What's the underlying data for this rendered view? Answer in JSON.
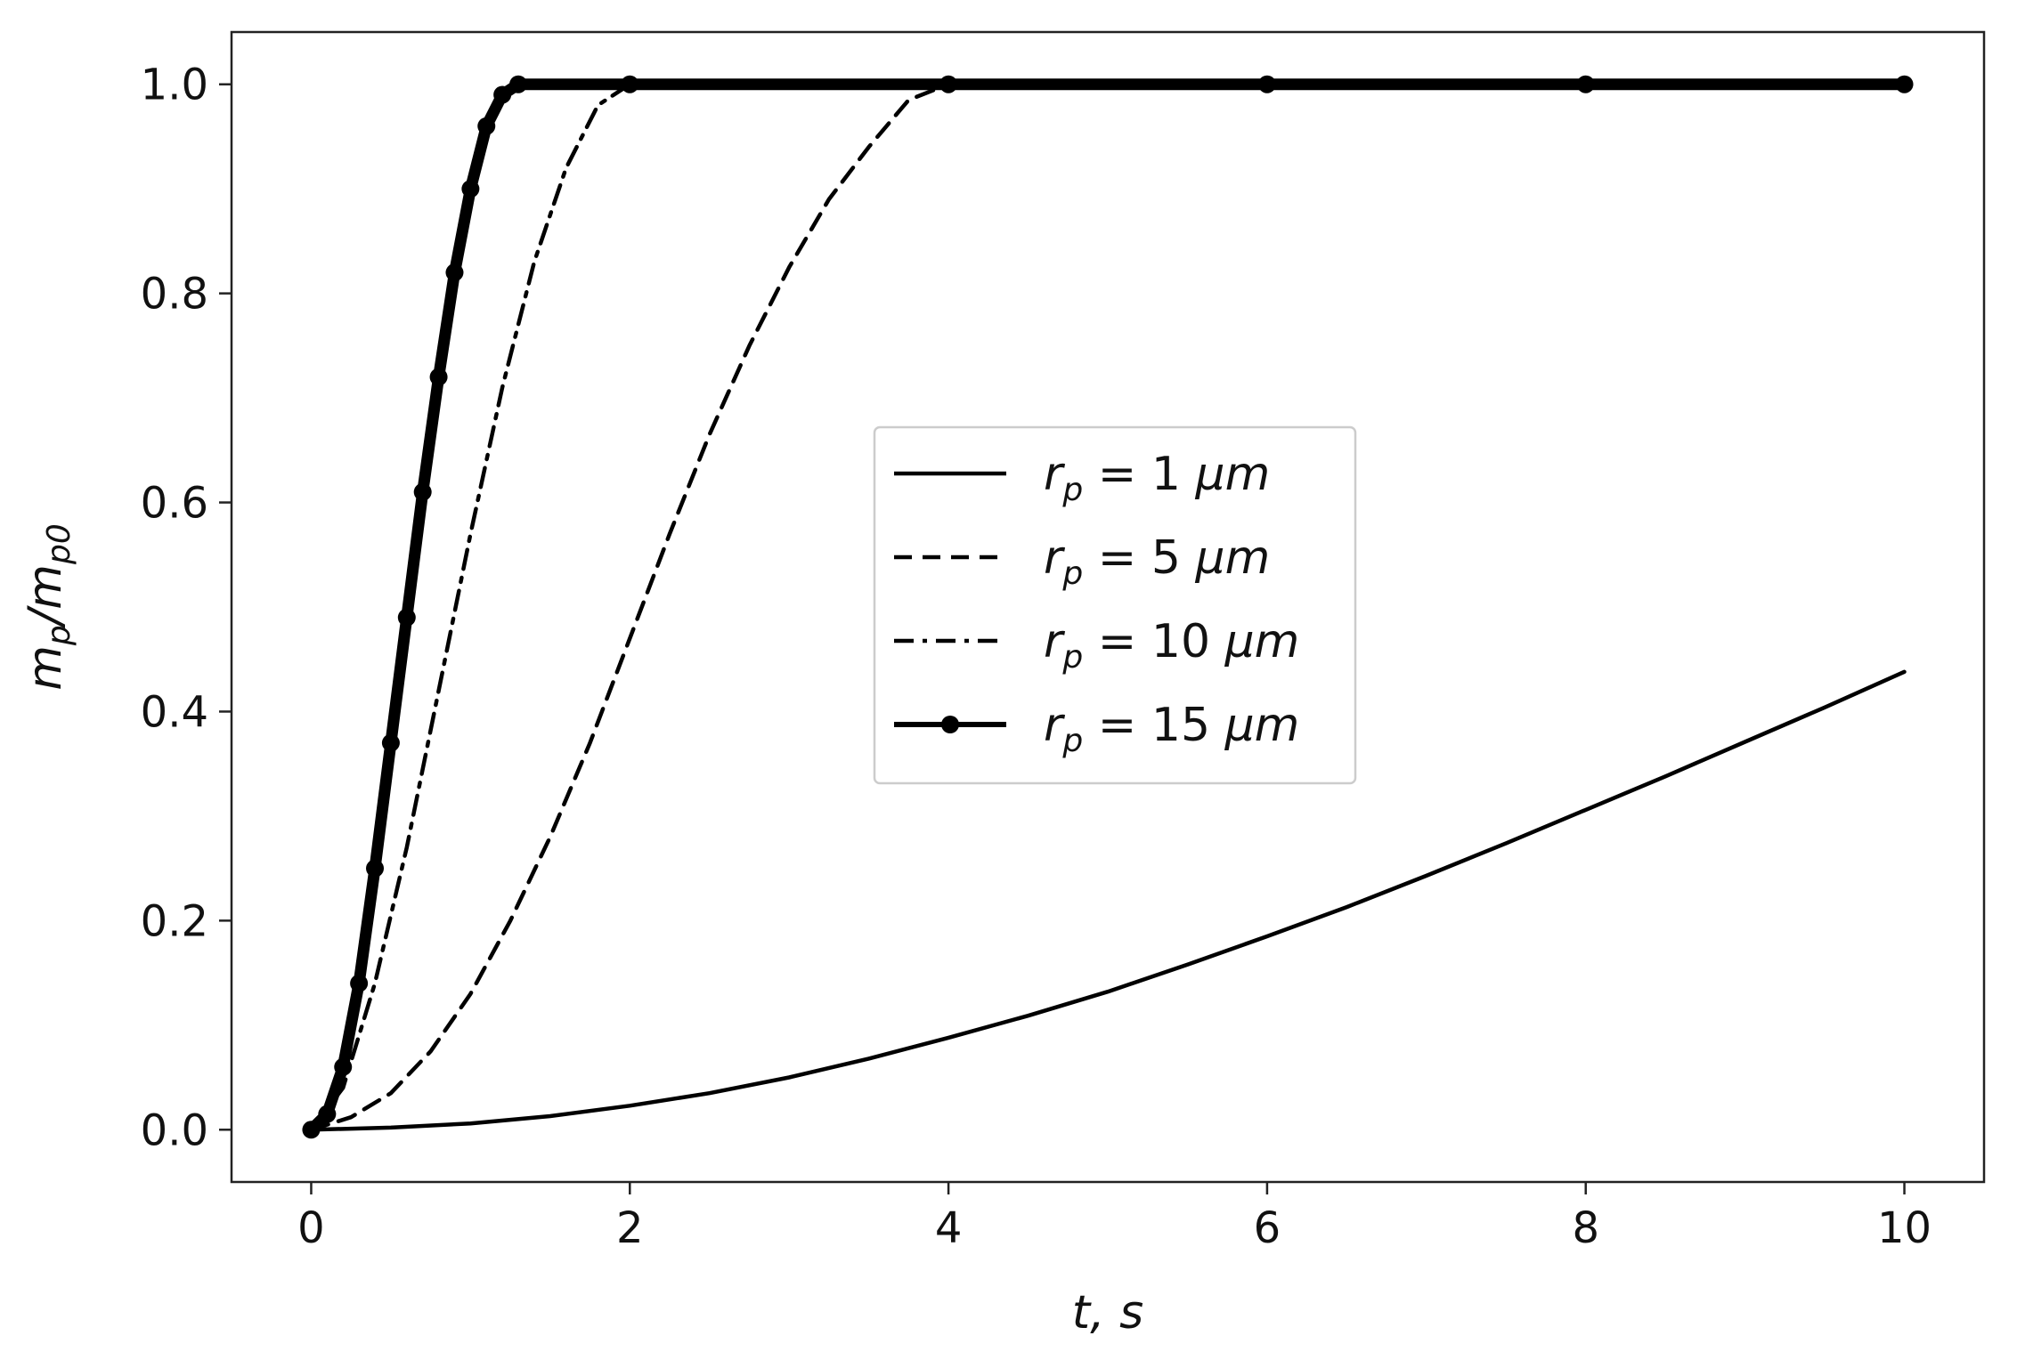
{
  "chart_data": {
    "type": "line",
    "xlabel": "t, s",
    "ylabel": "m_p/m_p0",
    "ylabel_parts": {
      "m1": "m",
      "s1": "p",
      "slash": "/",
      "m2": "m",
      "s2": "p0"
    },
    "xlim": [
      -0.5,
      10.5
    ],
    "ylim": [
      -0.05,
      1.05
    ],
    "xticks": [
      "0",
      "2",
      "4",
      "6",
      "8",
      "10"
    ],
    "xtick_values": [
      0,
      2,
      4,
      6,
      8,
      10
    ],
    "yticks": [
      "0.0",
      "0.2",
      "0.4",
      "0.6",
      "0.8",
      "1.0"
    ],
    "ytick_values": [
      0.0,
      0.2,
      0.4,
      0.6,
      0.8,
      1.0
    ],
    "grid": false,
    "legend_position": "center-right",
    "series": [
      {
        "name": "r_p = 1 μm",
        "label_parts": {
          "r": "r",
          "sub": "p",
          "eq": " = 1 ",
          "unit": "μm"
        },
        "style": "solid",
        "x": [
          0,
          0.5,
          1,
          1.5,
          2,
          2.5,
          3,
          3.5,
          4,
          4.5,
          5,
          5.5,
          6,
          6.5,
          7,
          7.5,
          8,
          8.5,
          9,
          9.5,
          10
        ],
        "y": [
          0.0,
          0.002,
          0.006,
          0.013,
          0.023,
          0.035,
          0.05,
          0.068,
          0.088,
          0.109,
          0.132,
          0.158,
          0.185,
          0.213,
          0.243,
          0.274,
          0.306,
          0.338,
          0.371,
          0.404,
          0.438
        ]
      },
      {
        "name": "r_p = 5 μm",
        "label_parts": {
          "r": "r",
          "sub": "p",
          "eq": " = 5 ",
          "unit": "μm"
        },
        "style": "dashed",
        "x": [
          0,
          0.25,
          0.5,
          0.75,
          1,
          1.25,
          1.5,
          1.75,
          2,
          2.25,
          2.5,
          2.75,
          3,
          3.25,
          3.5,
          3.75,
          4,
          6,
          8,
          10
        ],
        "y": [
          0.0,
          0.012,
          0.035,
          0.075,
          0.13,
          0.2,
          0.28,
          0.37,
          0.47,
          0.57,
          0.665,
          0.75,
          0.825,
          0.89,
          0.94,
          0.985,
          1.0,
          1.0,
          1.0,
          1.0
        ]
      },
      {
        "name": "r_p = 10 μm",
        "label_parts": {
          "r": "r",
          "sub": "p",
          "eq": " = 10 ",
          "unit": "μm"
        },
        "style": "dashdot",
        "x": [
          0,
          0.2,
          0.4,
          0.6,
          0.8,
          1.0,
          1.2,
          1.4,
          1.6,
          1.8,
          2.0,
          4,
          6,
          8,
          10
        ],
        "y": [
          0.0,
          0.04,
          0.14,
          0.27,
          0.42,
          0.57,
          0.71,
          0.83,
          0.92,
          0.98,
          1.0,
          1.0,
          1.0,
          1.0,
          1.0
        ]
      },
      {
        "name": "r_p = 15 μm",
        "label_parts": {
          "r": "r",
          "sub": "p",
          "eq": " = 15 ",
          "unit": "μm"
        },
        "style": "solid-marker",
        "x": [
          0,
          0.1,
          0.2,
          0.3,
          0.4,
          0.5,
          0.6,
          0.7,
          0.8,
          0.9,
          1.0,
          1.1,
          1.2,
          1.3,
          2,
          4,
          6,
          8,
          10
        ],
        "y": [
          0.0,
          0.015,
          0.06,
          0.14,
          0.25,
          0.37,
          0.49,
          0.61,
          0.72,
          0.82,
          0.9,
          0.96,
          0.99,
          1.0,
          1.0,
          1.0,
          1.0,
          1.0,
          1.0
        ]
      }
    ]
  }
}
